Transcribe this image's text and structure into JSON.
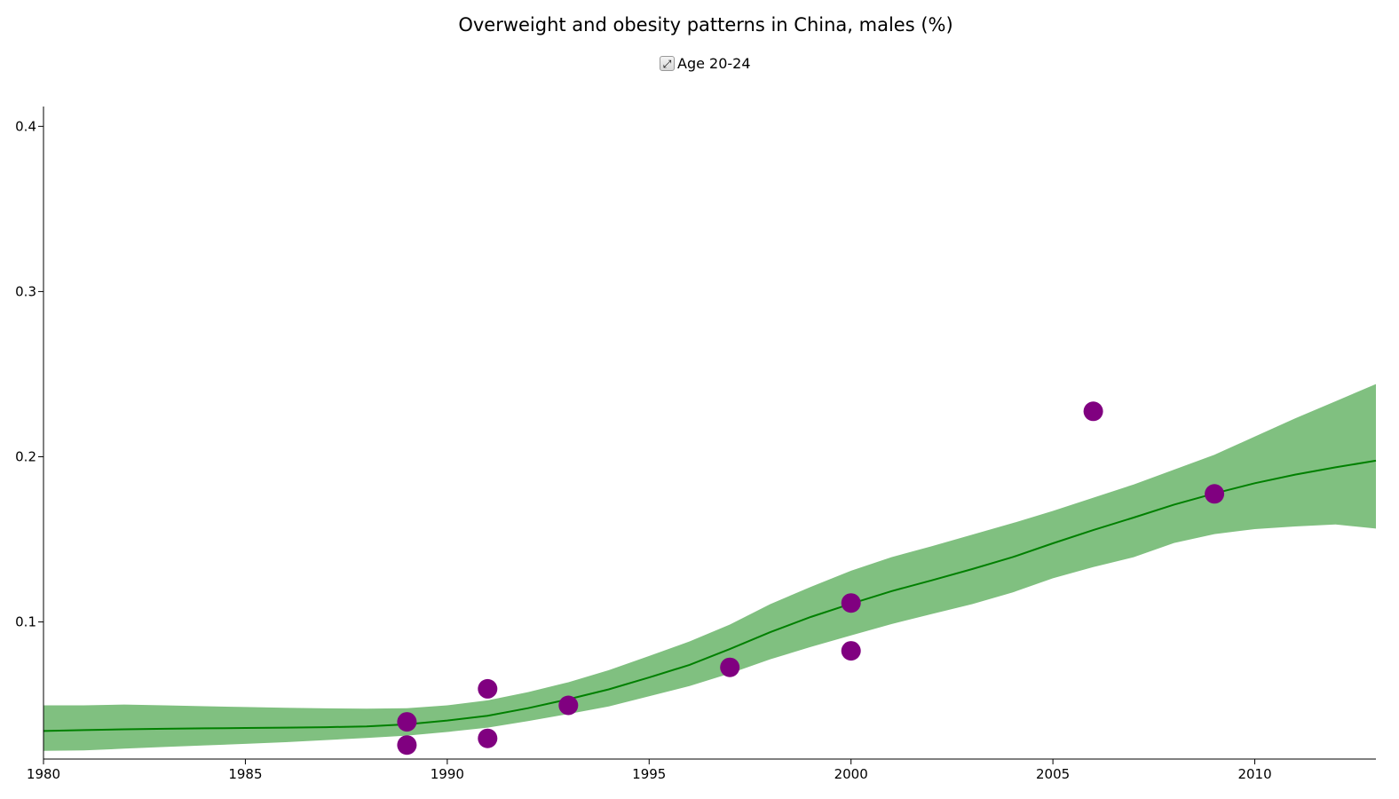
{
  "chart_data": {
    "type": "line",
    "title": "Overweight and obesity patterns in China, males (%)",
    "xlabel": "",
    "ylabel": "",
    "xlim": [
      1980,
      2013
    ],
    "ylim": [
      0.017,
      0.412
    ],
    "x_ticks": [
      1980,
      1985,
      1990,
      1995,
      2000,
      2005,
      2010
    ],
    "y_ticks": [
      0.1,
      0.2,
      0.3,
      0.4
    ],
    "x_tick_labels": [
      "1980",
      "1985",
      "1990",
      "1995",
      "2000",
      "2005",
      "2010"
    ],
    "y_tick_labels": [
      "0.1",
      "0.2",
      "0.3",
      "0.4"
    ],
    "grid": false,
    "legend": {
      "position": "top-center",
      "entries": [
        "Age 20-24"
      ]
    },
    "series": [
      {
        "name": "Age 20-24",
        "line_color": "#008000",
        "band_color": "#80c080",
        "x": [
          1980,
          1981,
          1982,
          1983,
          1984,
          1985,
          1986,
          1987,
          1988,
          1989,
          1990,
          1991,
          1992,
          1993,
          1994,
          1995,
          1996,
          1997,
          1998,
          1999,
          2000,
          2001,
          2002,
          2003,
          2004,
          2005,
          2006,
          2007,
          2008,
          2009,
          2010,
          2011,
          2012,
          2013
        ],
        "y": [
          0.034,
          0.0345,
          0.035,
          0.0353,
          0.0356,
          0.0358,
          0.036,
          0.0363,
          0.0368,
          0.038,
          0.0403,
          0.0432,
          0.0478,
          0.0532,
          0.0592,
          0.0664,
          0.074,
          0.0836,
          0.0938,
          0.103,
          0.111,
          0.1186,
          0.1252,
          0.132,
          0.1392,
          0.1476,
          0.1556,
          0.1632,
          0.171,
          0.1778,
          0.184,
          0.1892,
          0.1936,
          0.1976
        ],
        "lower": [
          0.022,
          0.0222,
          0.0233,
          0.0243,
          0.0253,
          0.0262,
          0.0272,
          0.0285,
          0.0298,
          0.0312,
          0.0334,
          0.036,
          0.04,
          0.0443,
          0.0488,
          0.055,
          0.0612,
          0.0688,
          0.0774,
          0.0848,
          0.0918,
          0.0987,
          0.1048,
          0.1108,
          0.1178,
          0.1264,
          0.1332,
          0.1392,
          0.1478,
          0.1532,
          0.1562,
          0.1578,
          0.159,
          0.1565
        ],
        "upper": [
          0.0495,
          0.0495,
          0.05,
          0.0495,
          0.049,
          0.0485,
          0.048,
          0.0477,
          0.0475,
          0.0478,
          0.0495,
          0.0525,
          0.0575,
          0.0635,
          0.0708,
          0.0794,
          0.0882,
          0.0984,
          0.1108,
          0.1212,
          0.131,
          0.1392,
          0.1458,
          0.1528,
          0.1598,
          0.1672,
          0.1752,
          0.1832,
          0.1922,
          0.2012,
          0.2122,
          0.2232,
          0.2336,
          0.244
        ]
      }
    ],
    "points": {
      "color": "#800080",
      "x": [
        1989,
        1989,
        1991,
        1991,
        1993,
        1997,
        2000,
        2000,
        2006,
        2009
      ],
      "y": [
        0.0395,
        0.0255,
        0.0595,
        0.0295,
        0.0495,
        0.0725,
        0.1115,
        0.0825,
        0.2275,
        0.1775
      ]
    }
  }
}
